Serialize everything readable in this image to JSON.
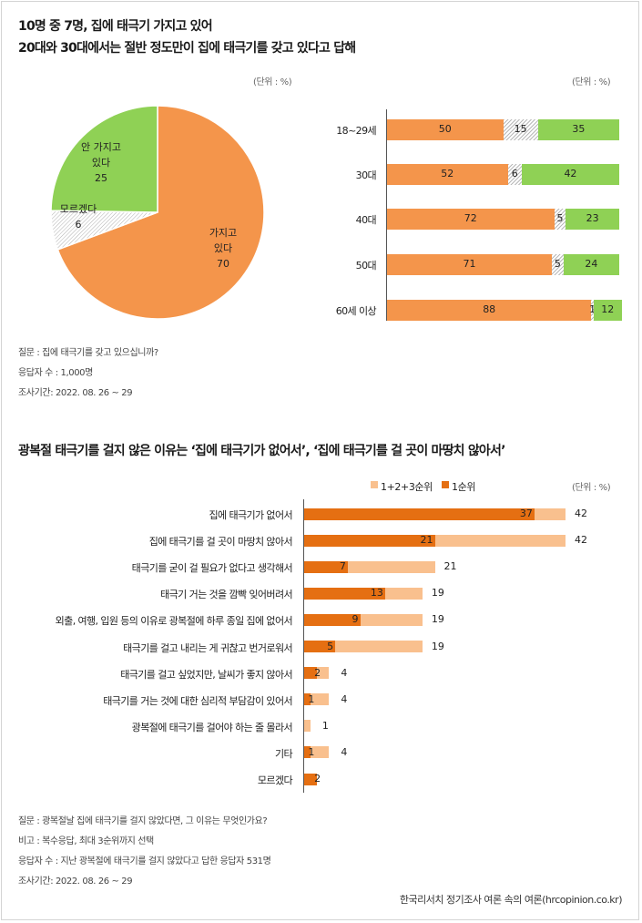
{
  "section1": {
    "title_line1": "10명 중 7명, 집에 태극기 가지고 있어",
    "title_line2": "20대와 30대에서는 절반 정도만이 집에 태극기를 갖고 있다고 답해",
    "unit_left": "(단위 : %)",
    "unit_right": "(단위 : %)",
    "notes": [
      "질문 :  집에 태극기를 갖고 있으십니까?",
      "응답자 수 : 1,000명",
      "조사기간: 2022. 08. 26 ~ 29"
    ]
  },
  "section2": {
    "title": "광복절 태극기를 걸지 않은 이유는 ‘집에 태극기가 없어서’, ‘집에 태극기를 걸 곳이 마땅치 않아서’",
    "unit": "(단위 : %)",
    "notes": [
      "질문 :  광복절날 집에 태극기를 걸지 않았다면, 그 이유는 무엇인가요?",
      "비고 : 복수응답, 최대 3순위까지 선택",
      "응답자 수 : 지난 광복절에 태극기를 걸지 않았다고 답한 응답자 531명",
      "조사기간: 2022. 08. 26 ~ 29"
    ],
    "source": "한국리서치 정기조사 여론 속의 여론(hrcopinion.co.kr)"
  },
  "colors": {
    "orange": "#f4954b",
    "green": "#8fd155",
    "dark_orange": "#e56f12",
    "light_orange": "#f9c08e",
    "hatch": "#b8b8b8"
  },
  "chart_data": [
    {
      "type": "pie",
      "labels": [
        "가지고\n있다",
        "모르겠다",
        "안 가지고\n있다"
      ],
      "values": [
        70,
        6,
        25
      ],
      "colors": [
        "#f4954b",
        "hatch",
        "#8fd155"
      ]
    },
    {
      "type": "bar",
      "orientation": "horizontal",
      "stacked": true,
      "categories": [
        "18~29세",
        "30대",
        "40대",
        "50대",
        "60세 이상"
      ],
      "series": [
        {
          "values": [
            50,
            52,
            72,
            71,
            88
          ],
          "color": "#f4954b"
        },
        {
          "values": [
            15,
            6,
            5,
            5,
            1
          ],
          "color": "hatch"
        },
        {
          "values": [
            35,
            42,
            23,
            24,
            12
          ],
          "color": "#8fd155"
        }
      ]
    },
    {
      "type": "bar",
      "orientation": "horizontal",
      "categories": [
        "집에 태극기가 없어서",
        "집에 태극기를 걸 곳이 마땅치 않아서",
        "태극기를 굳이 걸 필요가 없다고 생각해서",
        "태극기 거는 것을 깜빡 잊어버려서",
        "외출, 여행, 입원 등의 이유로 광복절에 하루 종일 집에 없어서",
        "태극기를 걸고 내리는 게 귀찮고 번거로워서",
        "태극기를 걸고 싶었지만, 날씨가 좋지 않아서",
        "태극기를 거는 것에 대한 심리적 부담감이 있어서",
        "광복절에 태극기를 걸어야 하는 줄 몰라서",
        "기타",
        "모르겠다"
      ],
      "series": [
        {
          "name": "1+2+3순위",
          "values": [
            42,
            42,
            21,
            19,
            19,
            19,
            4,
            4,
            1,
            4,
            2
          ],
          "color": "#f9c08e"
        },
        {
          "name": "1순위",
          "values": [
            37,
            21,
            7,
            13,
            9,
            5,
            2,
            1,
            null,
            1,
            2
          ],
          "color": "#e56f12"
        }
      ],
      "legend": "top-right"
    }
  ]
}
